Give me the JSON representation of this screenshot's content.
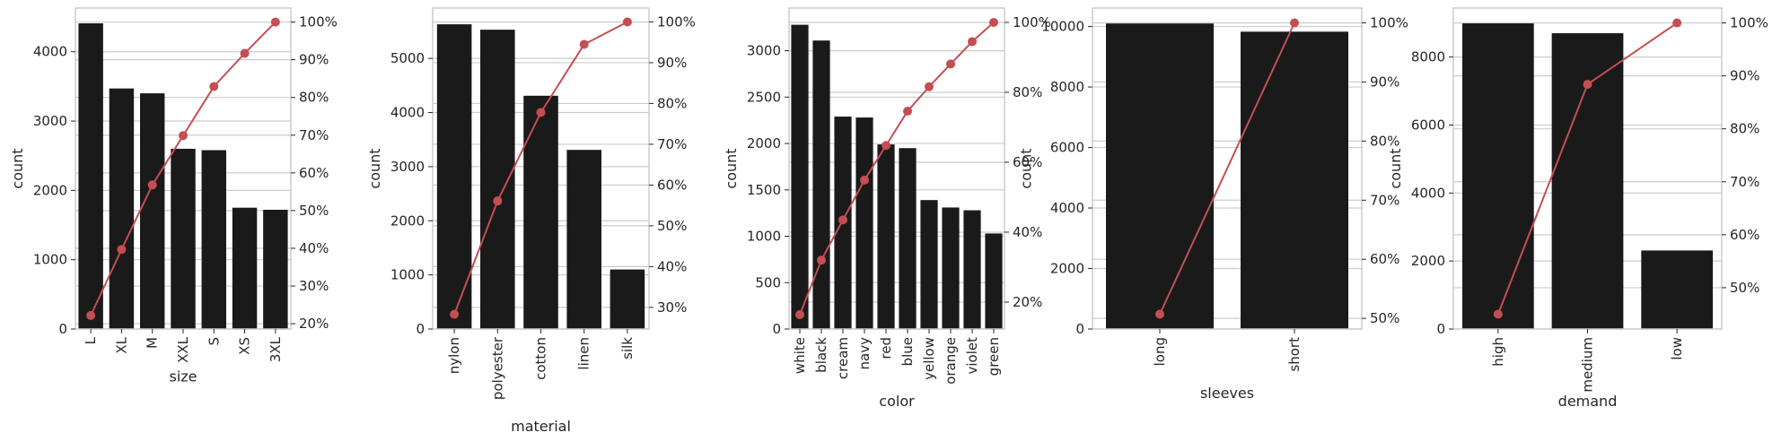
{
  "colors": {
    "bar": "#1a1a1a",
    "line": "#c44e52",
    "grid": "#cccccc",
    "spine": "#cccccc",
    "text": "#262626"
  },
  "chart_data": [
    {
      "type": "bar",
      "xlabel": "size",
      "ylabel": "count",
      "categories": [
        "L",
        "XL",
        "M",
        "XXL",
        "S",
        "XS",
        "3XL"
      ],
      "values": [
        4410,
        3470,
        3400,
        2600,
        2580,
        1750,
        1720
      ],
      "ylim": [
        0,
        4630
      ],
      "yticks": [
        0,
        1000,
        2000,
        3000,
        4000
      ],
      "cumulative_pct": [
        22.2,
        39.7,
        56.8,
        69.9,
        82.9,
        91.7,
        100
      ],
      "y2lim": [
        18.6,
        103.7
      ],
      "y2ticks": [
        20,
        30,
        40,
        50,
        60,
        70,
        80,
        90,
        100
      ],
      "grid": true
    },
    {
      "type": "bar",
      "xlabel": "material",
      "ylabel": "count",
      "categories": [
        "nylon",
        "polyester",
        "cotton",
        "linen",
        "silk"
      ],
      "values": [
        5630,
        5530,
        4310,
        3310,
        1100
      ],
      "ylim": [
        0,
        5930
      ],
      "yticks": [
        0,
        1000,
        2000,
        3000,
        4000,
        5000
      ],
      "cumulative_pct": [
        28.3,
        56.1,
        77.8,
        94.5,
        100
      ],
      "y2lim": [
        24.7,
        103.4
      ],
      "y2ticks": [
        30,
        40,
        50,
        60,
        70,
        80,
        90,
        100
      ],
      "grid": true
    },
    {
      "type": "bar",
      "xlabel": "color",
      "ylabel": "count",
      "categories": [
        "white",
        "black",
        "cream",
        "navy",
        "red",
        "blue",
        "yellow",
        "orange",
        "violet",
        "green"
      ],
      "values": [
        3280,
        3110,
        2290,
        2280,
        1990,
        1950,
        1390,
        1310,
        1280,
        1030
      ],
      "ylim": [
        0,
        3460
      ],
      "yticks": [
        0,
        500,
        1000,
        1500,
        2000,
        2500,
        3000
      ],
      "cumulative_pct": [
        16.4,
        32.0,
        43.5,
        54.9,
        64.8,
        74.6,
        81.6,
        88.1,
        94.5,
        100
      ],
      "y2lim": [
        12.3,
        104.1
      ],
      "y2ticks": [
        20,
        40,
        60,
        80,
        100
      ],
      "grid": true
    },
    {
      "type": "bar",
      "xlabel": "sleeves",
      "ylabel": "count",
      "categories": [
        "long",
        "short"
      ],
      "values": [
        10100,
        9830
      ],
      "ylim": [
        0,
        10610
      ],
      "yticks": [
        0,
        2000,
        4000,
        6000,
        8000,
        10000
      ],
      "cumulative_pct": [
        50.7,
        100
      ],
      "y2lim": [
        48.2,
        102.5
      ],
      "y2ticks": [
        50,
        60,
        70,
        80,
        90,
        100
      ],
      "grid": true
    },
    {
      "type": "bar",
      "xlabel": "demand",
      "ylabel": "count",
      "categories": [
        "high",
        "medium",
        "low"
      ],
      "values": [
        8990,
        8700,
        2310
      ],
      "ylim": [
        0,
        9440
      ],
      "yticks": [
        0,
        2000,
        4000,
        6000,
        8000
      ],
      "cumulative_pct": [
        45.0,
        88.4,
        100
      ],
      "y2lim": [
        42.2,
        102.8
      ],
      "y2ticks": [
        50,
        60,
        70,
        80,
        90,
        100
      ],
      "grid": true
    }
  ]
}
